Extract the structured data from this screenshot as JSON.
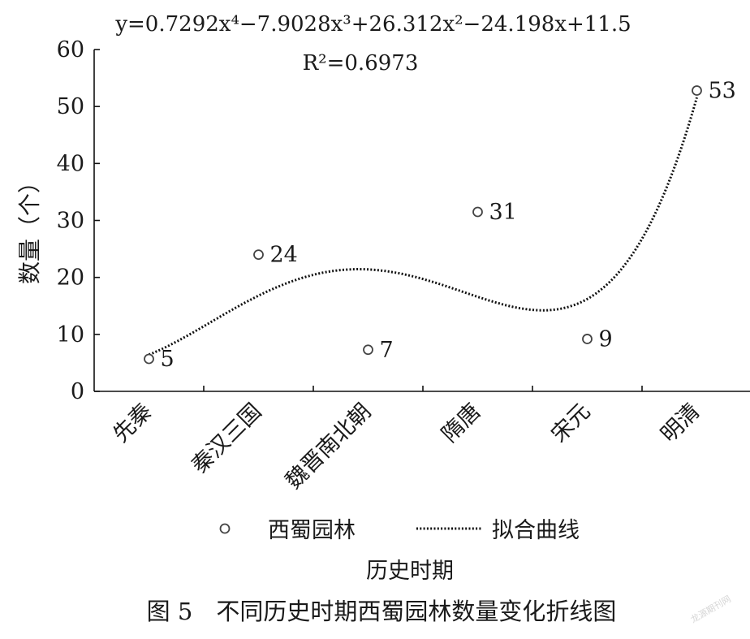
{
  "chart_data": {
    "type": "scatter",
    "equation": "y=0.7292x⁴−7.9028x³+26.312x²−24.198x+11.5",
    "r_squared": "R²=0.6973",
    "ylabel": "数量（个）",
    "xlabel": "历史时期",
    "caption": "图 5　不同历史时期西蜀园林数量变化折线图",
    "categories": [
      "先秦",
      "秦汉三国",
      "魏晋南北朝",
      "隋唐",
      "宋元",
      "明清"
    ],
    "y_ticks": [
      "0",
      "10",
      "20",
      "30",
      "40",
      "50",
      "60"
    ],
    "ylim": [
      0,
      60
    ],
    "series": [
      {
        "name": "西蜀园林",
        "values": [
          5,
          24,
          7,
          31,
          9,
          53
        ],
        "plotted": [
          5.7,
          24,
          7.3,
          31.5,
          9.2,
          52.8
        ],
        "labels": [
          "5",
          "24",
          "7",
          "31",
          "9",
          "53"
        ]
      }
    ],
    "fit": {
      "name": "拟合曲线",
      "coefficients": [
        11.5,
        -24.198,
        26.312,
        -7.9028,
        0.7292
      ],
      "x_range": [
        1,
        6
      ]
    },
    "legend_position": "bottom",
    "grid": false
  },
  "watermark": "龙源期刊网"
}
